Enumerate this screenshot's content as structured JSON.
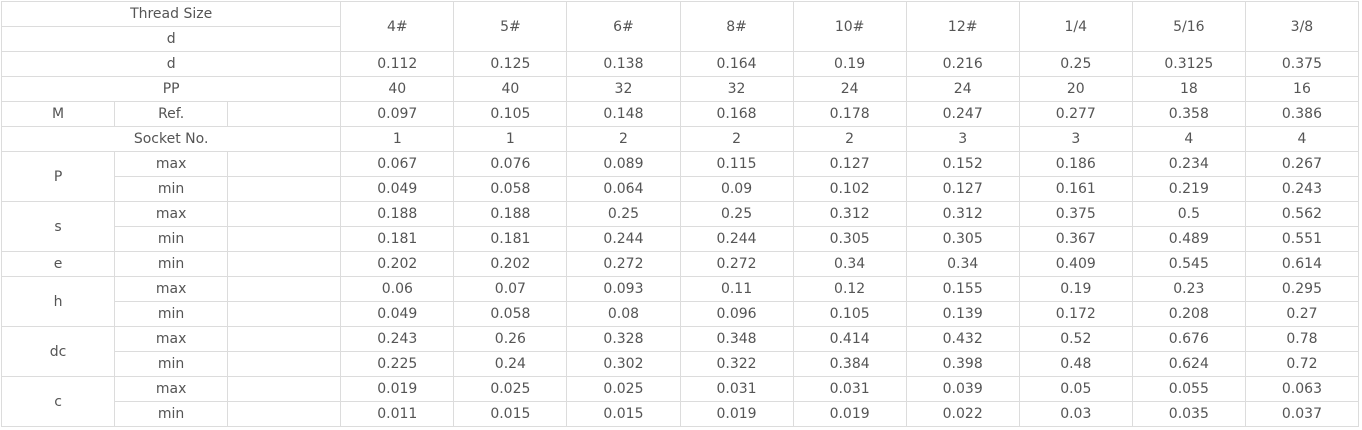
{
  "table": {
    "header_top": "Thread Size",
    "header_sub": "d",
    "columns": [
      "4#",
      "5#",
      "6#",
      "8#",
      "10#",
      "12#",
      "1/4",
      "5/16",
      "3/8"
    ],
    "sections": [
      {
        "name": "d",
        "values": [
          0.112,
          0.125,
          0.138,
          0.164,
          0.19,
          0.216,
          0.25,
          0.3125,
          0.375
        ]
      },
      {
        "name": "PP",
        "values": [
          40,
          40,
          32,
          32,
          24,
          24,
          20,
          18,
          16
        ]
      },
      {
        "name": "M",
        "rows": [
          {
            "label": "Ref.",
            "values": [
              0.097,
              0.105,
              0.148,
              0.168,
              0.178,
              0.247,
              0.277,
              0.358,
              0.386
            ]
          }
        ]
      },
      {
        "name": "Socket No.",
        "values": [
          1,
          1,
          2,
          2,
          2,
          3,
          3,
          4,
          4
        ]
      },
      {
        "name": "P",
        "rows": [
          {
            "label": "max",
            "values": [
              0.067,
              0.076,
              0.089,
              0.115,
              0.127,
              0.152,
              0.186,
              0.234,
              0.267
            ]
          },
          {
            "label": "min",
            "values": [
              0.049,
              0.058,
              0.064,
              0.09,
              0.102,
              0.127,
              0.161,
              0.219,
              0.243
            ]
          }
        ]
      },
      {
        "name": "s",
        "rows": [
          {
            "label": "max",
            "values": [
              0.188,
              0.188,
              0.25,
              0.25,
              0.312,
              0.312,
              0.375,
              0.5,
              0.562
            ]
          },
          {
            "label": "min",
            "values": [
              0.181,
              0.181,
              0.244,
              0.244,
              0.305,
              0.305,
              0.367,
              0.489,
              0.551
            ]
          }
        ]
      },
      {
        "name": "e",
        "rows": [
          {
            "label": "min",
            "values": [
              0.202,
              0.202,
              0.272,
              0.272,
              0.34,
              0.34,
              0.409,
              0.545,
              0.614
            ]
          }
        ]
      },
      {
        "name": "h",
        "rows": [
          {
            "label": "max",
            "values": [
              0.06,
              0.07,
              0.093,
              0.11,
              0.12,
              0.155,
              0.19,
              0.23,
              0.295
            ]
          },
          {
            "label": "min",
            "values": [
              0.049,
              0.058,
              0.08,
              0.096,
              0.105,
              0.139,
              0.172,
              0.208,
              0.27
            ]
          }
        ]
      },
      {
        "name": "dc",
        "rows": [
          {
            "label": "max",
            "values": [
              0.243,
              0.26,
              0.328,
              0.348,
              0.414,
              0.432,
              0.52,
              0.676,
              0.78
            ]
          },
          {
            "label": "min",
            "values": [
              0.225,
              0.24,
              0.302,
              0.322,
              0.384,
              0.398,
              0.48,
              0.624,
              0.72
            ]
          }
        ]
      },
      {
        "name": "c",
        "rows": [
          {
            "label": "max",
            "values": [
              0.019,
              0.025,
              0.025,
              0.031,
              0.031,
              0.039,
              0.05,
              0.055,
              0.063
            ]
          },
          {
            "label": "min",
            "values": [
              0.011,
              0.015,
              0.015,
              0.019,
              0.019,
              0.022,
              0.03,
              0.035,
              0.037
            ]
          }
        ]
      }
    ]
  }
}
